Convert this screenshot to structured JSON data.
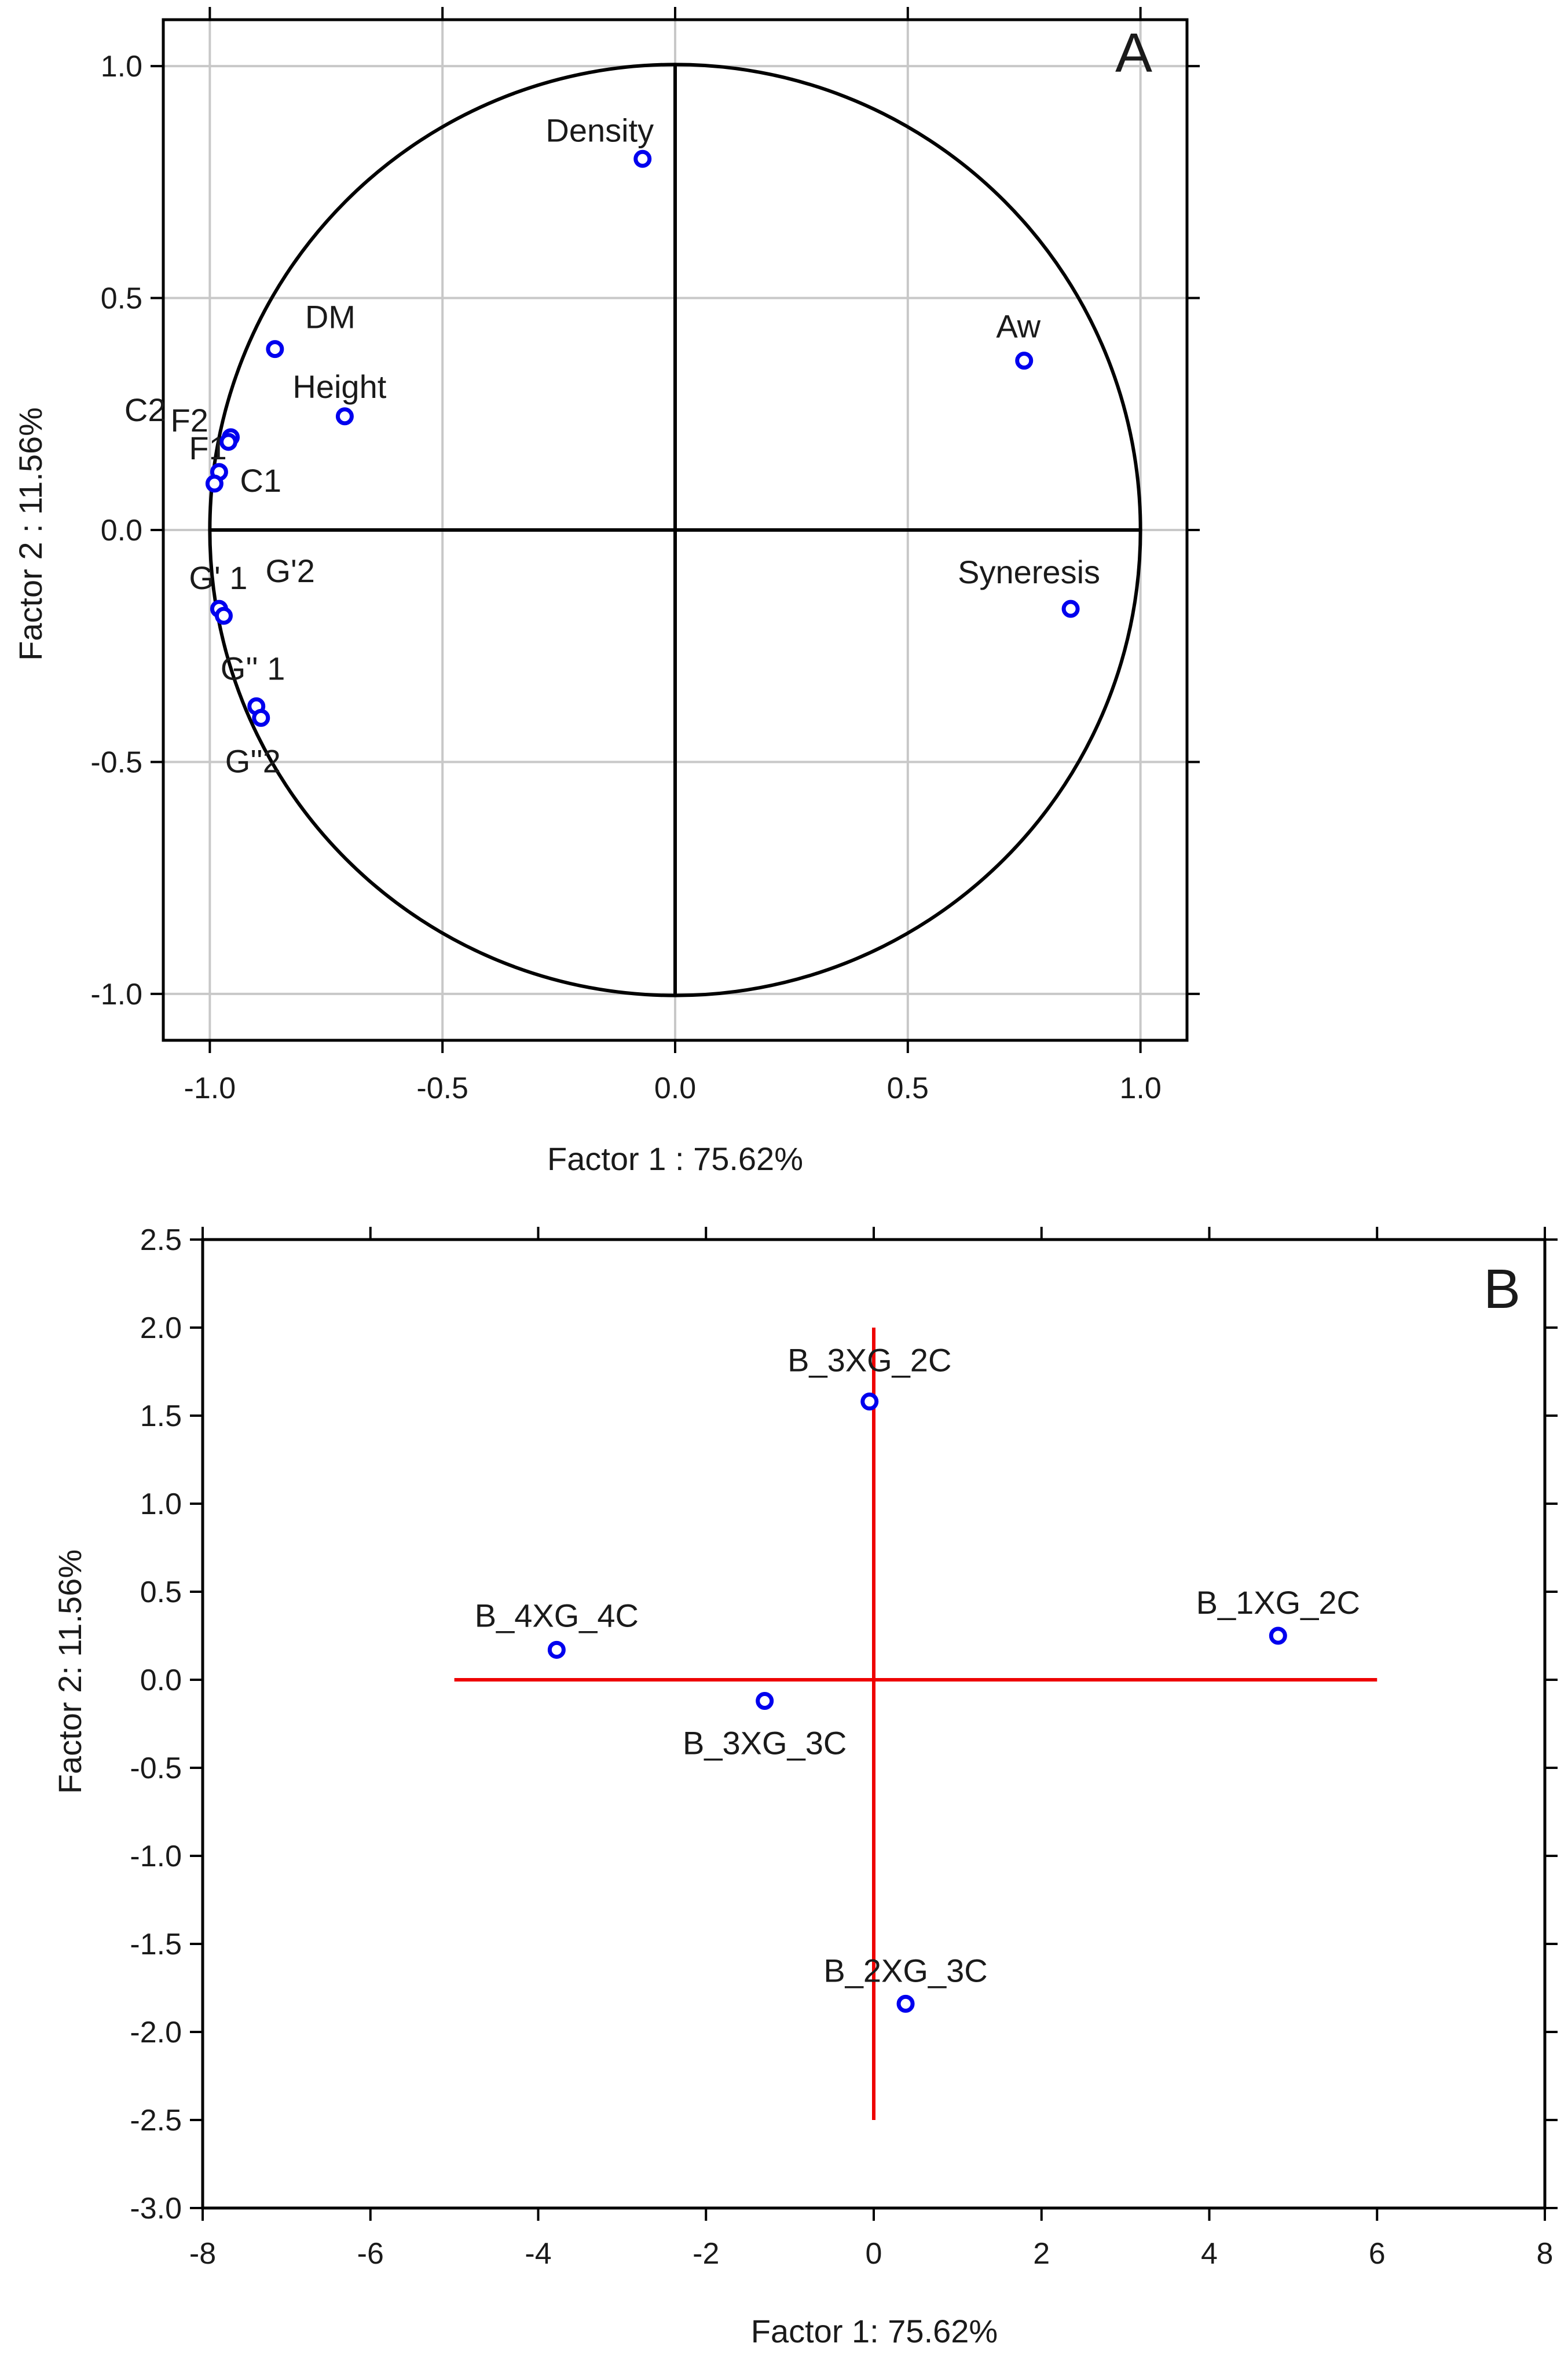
{
  "figure": {
    "background": "#ffffff",
    "marker_color": "#0000ee"
  },
  "chart_data": [
    {
      "panel": "A",
      "type": "scatter",
      "title": "",
      "panel_label": "A",
      "xlabel": "Factor 1 : 75.62%",
      "ylabel": "Factor 2 : 11.56%",
      "xlim": [
        -1.1,
        1.1
      ],
      "ylim": [
        -1.1,
        1.1
      ],
      "xticks": [
        -1.0,
        -0.5,
        0.0,
        0.5,
        1.0
      ],
      "yticks": [
        -1.0,
        -0.5,
        0.0,
        0.5,
        1.0
      ],
      "xtick_labels": [
        "-1.0",
        "-0.5",
        "0.0",
        "0.5",
        "1.0"
      ],
      "ytick_labels": [
        "-1.0",
        "-0.5",
        "0.0",
        "0.5",
        "1.0"
      ],
      "grid": true,
      "unit_circle": true,
      "axis_line_color": "#000000",
      "points": [
        {
          "label": "Density",
          "x": -0.07,
          "y": 0.8
        },
        {
          "label": "Aw",
          "x": 0.75,
          "y": 0.365
        },
        {
          "label": "DM",
          "x": -0.86,
          "y": 0.39
        },
        {
          "label": "Height",
          "x": -0.71,
          "y": 0.245
        },
        {
          "label": "C2",
          "x": -0.955,
          "y": 0.2
        },
        {
          "label": "F2",
          "x": -0.96,
          "y": 0.19
        },
        {
          "label": "F1",
          "x": -0.98,
          "y": 0.125
        },
        {
          "label": "C1",
          "x": -0.99,
          "y": 0.1
        },
        {
          "label": "G' 1",
          "x": -0.98,
          "y": -0.17
        },
        {
          "label": "G'2",
          "x": -0.97,
          "y": -0.185
        },
        {
          "label": "G'' 1",
          "x": -0.9,
          "y": -0.38
        },
        {
          "label": "G''2",
          "x": -0.89,
          "y": -0.405
        },
        {
          "label": "Syneresis",
          "x": 0.85,
          "y": -0.17
        }
      ]
    },
    {
      "panel": "B",
      "type": "scatter",
      "title": "",
      "panel_label": "B",
      "xlabel": "Factor 1: 75.62%",
      "ylabel": "Factor 2: 11.56%",
      "xlim": [
        -8,
        8
      ],
      "ylim": [
        -3.0,
        2.5
      ],
      "xticks": [
        -8,
        -6,
        -4,
        -2,
        0,
        2,
        4,
        6,
        8
      ],
      "yticks": [
        -3.0,
        -2.5,
        -2.0,
        -1.5,
        -1.0,
        -0.5,
        0.0,
        0.5,
        1.0,
        1.5,
        2.0,
        2.5
      ],
      "xtick_labels": [
        "-8",
        "-6",
        "-4",
        "-2",
        "0",
        "2",
        "4",
        "6",
        "8"
      ],
      "ytick_labels": [
        "-3.0",
        "-2.5",
        "-2.0",
        "-1.5",
        "-1.0",
        "-0.5",
        "0.0",
        "0.5",
        "1.0",
        "1.5",
        "2.0",
        "2.5"
      ],
      "grid": false,
      "axis_line_color": "#ee0000",
      "axis_lines": {
        "h": {
          "x1": -5,
          "x2": 6,
          "y": 0
        },
        "v": {
          "x": 0,
          "y1": -2.5,
          "y2": 2.0
        }
      },
      "points": [
        {
          "label": "B_3XG_2C",
          "x": -0.05,
          "y": 1.58
        },
        {
          "label": "B_1XG_2C",
          "x": 4.82,
          "y": 0.25
        },
        {
          "label": "B_4XG_4C",
          "x": -3.78,
          "y": 0.17
        },
        {
          "label": "B_3XG_3C",
          "x": -1.3,
          "y": -0.12
        },
        {
          "label": "B_2XG_3C",
          "x": 0.38,
          "y": -1.84
        }
      ]
    }
  ]
}
